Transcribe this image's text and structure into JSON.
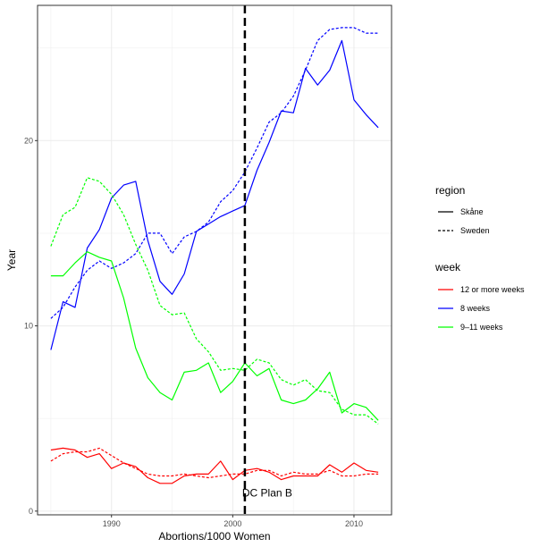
{
  "chart_data": {
    "type": "line",
    "xlabel": "Abortions/1000 Women",
    "ylabel": "Year",
    "xlim": [
      1983.9,
      2013.1
    ],
    "ylim": [
      -0.2,
      27.3
    ],
    "x_ticks": [
      1990,
      2000,
      2010
    ],
    "y_ticks": [
      0,
      10,
      20
    ],
    "grid": true,
    "legend_position": "right",
    "legends": [
      {
        "title": "region",
        "entries": [
          {
            "label": "Skåne",
            "linetype": "solid"
          },
          {
            "label": "Sweden",
            "linetype": "dashed"
          }
        ]
      },
      {
        "title": "week",
        "entries": [
          {
            "label": "12 or more weeks",
            "color": "#ff0000"
          },
          {
            "label": "8 weeks",
            "color": "#0000ff"
          },
          {
            "label": "9–11 weeks",
            "color": "#00ff00"
          }
        ]
      }
    ],
    "annotation": {
      "label": "DC Plan B",
      "x": 2001
    },
    "x": [
      1985,
      1986,
      1987,
      1988,
      1989,
      1990,
      1991,
      1992,
      1993,
      1994,
      1995,
      1996,
      1997,
      1998,
      1999,
      2000,
      2001,
      2002,
      2003,
      2004,
      2005,
      2006,
      2007,
      2008,
      2009,
      2010,
      2011,
      2012
    ],
    "series": [
      {
        "region": "Skåne",
        "week": "8 weeks",
        "color": "#0000ff",
        "linetype": "solid",
        "values": [
          8.7,
          11.3,
          11.0,
          14.2,
          15.2,
          16.9,
          17.6,
          17.8,
          14.6,
          12.4,
          11.7,
          12.8,
          15.1,
          15.5,
          15.9,
          16.2,
          16.5,
          18.4,
          19.9,
          21.6,
          21.5,
          23.9,
          23.0,
          23.8,
          25.4,
          22.2,
          21.4,
          20.7
        ]
      },
      {
        "region": "Sweden",
        "week": "8 weeks",
        "color": "#0000ff",
        "linetype": "dashed",
        "values": [
          10.4,
          11.0,
          12.1,
          13.0,
          13.5,
          13.1,
          13.4,
          13.9,
          15.0,
          15.0,
          13.9,
          14.8,
          15.1,
          15.6,
          16.7,
          17.3,
          18.3,
          19.6,
          21.0,
          21.5,
          22.4,
          23.8,
          25.4,
          26.0,
          26.1,
          26.1,
          25.8,
          25.8
        ]
      },
      {
        "region": "Skåne",
        "week": "9–11 weeks",
        "color": "#00ff00",
        "linetype": "solid",
        "values": [
          12.7,
          12.7,
          13.4,
          14.0,
          13.7,
          13.5,
          11.5,
          8.8,
          7.2,
          6.4,
          6.0,
          7.5,
          7.6,
          8.0,
          6.4,
          7.0,
          8.0,
          7.3,
          7.7,
          6.0,
          5.8,
          6.0,
          6.6,
          7.5,
          5.3,
          5.8,
          5.6,
          4.9
        ]
      },
      {
        "region": "Sweden",
        "week": "9–11 weeks",
        "color": "#00ff00",
        "linetype": "dashed",
        "values": [
          14.3,
          16.0,
          16.4,
          18.0,
          17.8,
          17.1,
          16.0,
          14.4,
          13.0,
          11.1,
          10.6,
          10.7,
          9.3,
          8.6,
          7.6,
          7.7,
          7.6,
          8.2,
          8.0,
          7.1,
          6.8,
          7.1,
          6.5,
          6.4,
          5.5,
          5.2,
          5.2,
          4.7
        ]
      },
      {
        "region": "Skåne",
        "week": "12 or more weeks",
        "color": "#ff0000",
        "linetype": "solid",
        "values": [
          3.3,
          3.4,
          3.3,
          2.9,
          3.1,
          2.3,
          2.6,
          2.4,
          1.8,
          1.5,
          1.5,
          1.9,
          2.0,
          2.0,
          2.7,
          1.7,
          2.2,
          2.3,
          2.1,
          1.7,
          1.9,
          1.9,
          1.9,
          2.5,
          2.1,
          2.6,
          2.2,
          2.1
        ]
      },
      {
        "region": "Sweden",
        "week": "12 or more weeks",
        "color": "#ff0000",
        "linetype": "dashed",
        "values": [
          2.7,
          3.1,
          3.2,
          3.2,
          3.4,
          3.0,
          2.6,
          2.3,
          2.0,
          1.9,
          1.9,
          2.0,
          1.9,
          1.8,
          1.9,
          2.0,
          2.0,
          2.2,
          2.2,
          1.9,
          2.1,
          2.0,
          2.0,
          2.2,
          1.9,
          1.9,
          2.0,
          2.0
        ]
      }
    ]
  }
}
